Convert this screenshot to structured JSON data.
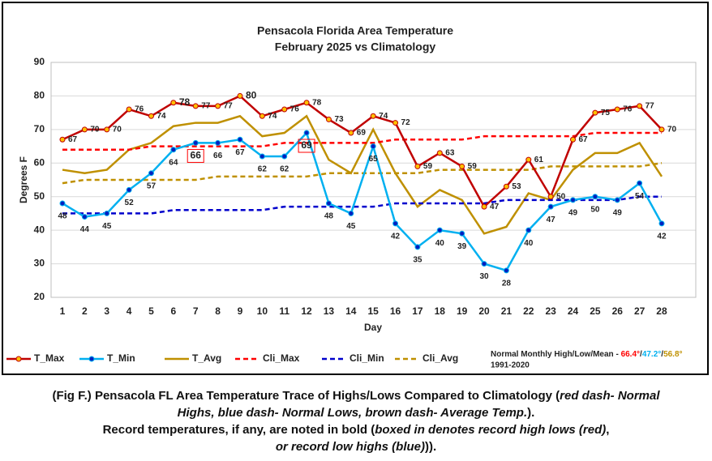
{
  "chart_data": {
    "type": "line",
    "title": [
      "Pensacola Florida Area Temperature",
      "February 2025 vs Climatology"
    ],
    "x_label": "Day",
    "y_label": "Degrees F",
    "categories": [
      "1",
      "2",
      "3",
      "4",
      "5",
      "6",
      "7",
      "8",
      "9",
      "10",
      "11",
      "12",
      "13",
      "14",
      "15",
      "16",
      "17",
      "18",
      "19",
      "20",
      "21",
      "22",
      "23",
      "24",
      "25",
      "26",
      "27",
      "28"
    ],
    "ylim": [
      20,
      90
    ],
    "yticks": [
      20,
      30,
      40,
      50,
      60,
      70,
      80,
      90
    ],
    "grid": true,
    "series": [
      {
        "name": "T_Max",
        "color": "#c00000",
        "marker_color": "#ffc000",
        "labels": "right",
        "highlight": [
          5,
          8
        ],
        "highlight_color": "#ff0000",
        "values": [
          67,
          70,
          70,
          76,
          74,
          78,
          77,
          77,
          80,
          74,
          76,
          78,
          73,
          69,
          74,
          72,
          59,
          63,
          59,
          47,
          53,
          61,
          50,
          67,
          75,
          76,
          77,
          70
        ]
      },
      {
        "name": "T_Min",
        "color": "#00b0f0",
        "marker_color": "#0020c0",
        "labels": "below",
        "boxed": [
          6,
          11
        ],
        "boxed_label_color": "#1f3fbf",
        "box_color": "#ff0000",
        "values": [
          48,
          44,
          45,
          52,
          57,
          64,
          66,
          66,
          67,
          62,
          62,
          69,
          48,
          45,
          65,
          42,
          35,
          40,
          39,
          30,
          28,
          40,
          47,
          49,
          50,
          49,
          54,
          42
        ]
      },
      {
        "name": "T_Avg",
        "color": "#bf9000",
        "values": [
          58,
          57,
          58,
          64,
          66,
          71,
          72,
          72,
          74,
          68,
          69,
          74,
          61,
          57,
          70,
          57,
          47,
          52,
          49,
          39,
          41,
          51,
          49,
          58,
          63,
          63,
          66,
          56
        ]
      },
      {
        "name": "Cli_Max",
        "color": "#ff0000",
        "dash": true,
        "values": [
          64,
          64,
          64,
          64,
          65,
          65,
          65,
          65,
          65,
          65,
          66,
          66,
          66,
          66,
          66,
          67,
          67,
          67,
          67,
          68,
          68,
          68,
          68,
          68,
          69,
          69,
          69,
          69
        ]
      },
      {
        "name": "Cli_Min",
        "color": "#0000cc",
        "dash": true,
        "values": [
          45,
          45,
          45,
          45,
          45,
          46,
          46,
          46,
          46,
          46,
          47,
          47,
          47,
          47,
          47,
          48,
          48,
          48,
          48,
          48,
          49,
          49,
          49,
          49,
          49,
          49,
          50,
          50
        ]
      },
      {
        "name": "Cli_Avg",
        "color": "#bf9000",
        "dash": true,
        "values": [
          54,
          55,
          55,
          55,
          55,
          55,
          55,
          56,
          56,
          56,
          56,
          56,
          57,
          57,
          57,
          57,
          57,
          58,
          58,
          58,
          58,
          58,
          59,
          59,
          59,
          59,
          59,
          60
        ]
      }
    ],
    "note": {
      "text": "Normal Monthly High/Low/Mean - ",
      "high": "66.4°",
      "sep": "/",
      "low": "47.2°",
      "mean": "56.8°",
      "period": "1991-2020",
      "high_color": "#ff0000",
      "low_color": "#00b0f0",
      "mean_color": "#bf9000"
    }
  },
  "caption": [
    [
      {
        "text": "(Fig F.) Pensacola FL Area Temperature Trace of Highs/Lows Compared to Climatology (",
        "italic": false
      },
      {
        "text": "red dash- Normal",
        "italic": true
      }
    ],
    [
      {
        "text": "Highs, blue dash- Normal Lows, brown dash- Average Temp.",
        "italic": true
      },
      {
        "text": ").",
        "italic": false
      }
    ],
    [
      {
        "text": "Record temperatures, if any, are noted in bold (",
        "italic": false
      },
      {
        "text": "boxed in denotes record high lows (red)",
        "italic": true
      },
      {
        "text": ",",
        "italic": false
      }
    ],
    [
      {
        "text": "or record low highs (blue)",
        "italic": true
      },
      {
        "text": ")).",
        "italic": false
      }
    ]
  ]
}
